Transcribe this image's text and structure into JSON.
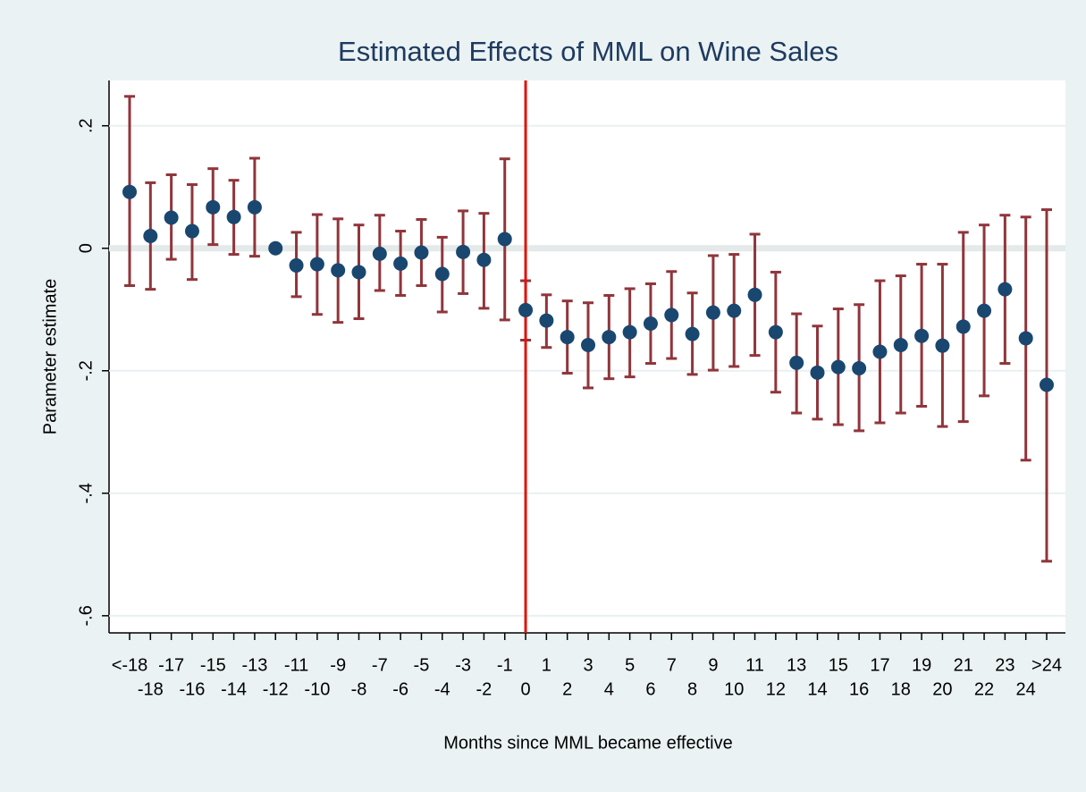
{
  "chart_data": {
    "type": "errorbar",
    "title": "Estimated Effects of MML on Wine Sales",
    "x_label": "Months since MML became effective",
    "y_label": "Parameter estimate",
    "categories": [
      "<-18",
      "-18",
      "-17",
      "-16",
      "-15",
      "-14",
      "-13",
      "-12",
      "-11",
      "-10",
      "-9",
      "-8",
      "-7",
      "-6",
      "-5",
      "-4",
      "-3",
      "-2",
      "-1",
      "0",
      "1",
      "2",
      "3",
      "4",
      "5",
      "6",
      "7",
      "8",
      "9",
      "10",
      "11",
      "12",
      "13",
      "14",
      "15",
      "16",
      "17",
      "18",
      "19",
      "20",
      "21",
      "22",
      "23",
      "24",
      ">24"
    ],
    "values": [
      0.092,
      0.02,
      0.05,
      0.028,
      0.067,
      0.051,
      0.067,
      0,
      -0.028,
      -0.026,
      -0.036,
      -0.039,
      -0.009,
      -0.025,
      -0.007,
      -0.042,
      -0.006,
      -0.019,
      0.015,
      -0.101,
      -0.118,
      -0.145,
      -0.158,
      -0.145,
      -0.137,
      -0.123,
      -0.109,
      -0.14,
      -0.105,
      -0.102,
      -0.076,
      -0.137,
      -0.187,
      -0.203,
      -0.194,
      -0.196,
      -0.169,
      -0.158,
      -0.143,
      -0.159,
      -0.128,
      -0.102,
      -0.067,
      -0.147,
      -0.223
    ],
    "lower": [
      -0.061,
      -0.067,
      -0.018,
      -0.051,
      0.006,
      -0.01,
      -0.013,
      null,
      -0.079,
      -0.108,
      -0.121,
      -0.115,
      -0.069,
      -0.077,
      -0.061,
      -0.104,
      -0.074,
      -0.098,
      -0.117,
      -0.15,
      -0.162,
      -0.204,
      -0.228,
      -0.213,
      -0.21,
      -0.188,
      -0.18,
      -0.206,
      -0.199,
      -0.193,
      -0.175,
      -0.235,
      -0.269,
      -0.279,
      -0.288,
      -0.298,
      -0.285,
      -0.269,
      -0.258,
      -0.291,
      -0.283,
      -0.241,
      -0.188,
      -0.346,
      -0.511
    ],
    "upper": [
      0.248,
      0.107,
      0.12,
      0.104,
      0.13,
      0.111,
      0.147,
      null,
      0.026,
      0.055,
      0.048,
      0.038,
      0.054,
      0.028,
      0.047,
      0.018,
      0.061,
      0.057,
      0.146,
      -0.053,
      -0.076,
      -0.086,
      -0.089,
      -0.077,
      -0.066,
      -0.058,
      -0.038,
      -0.073,
      -0.012,
      -0.01,
      0.023,
      -0.039,
      -0.107,
      -0.127,
      -0.099,
      -0.092,
      -0.053,
      -0.045,
      -0.026,
      -0.026,
      0.026,
      0.038,
      0.054,
      0.051,
      0.063
    ],
    "color": "#1a476f",
    "bar_color": "#90353b",
    "xline": "0",
    "xline_color": "#e3120b",
    "ylim": [
      -0.628,
      0.274
    ],
    "yticks": [
      {
        "value": 0.2,
        "label": ".2"
      },
      0,
      {
        "value": -0.2,
        "label": "-.2"
      },
      {
        "value": -0.4,
        "label": "-.4"
      },
      {
        "value": -0.6,
        "label": "-.6"
      }
    ],
    "grid": true
  }
}
